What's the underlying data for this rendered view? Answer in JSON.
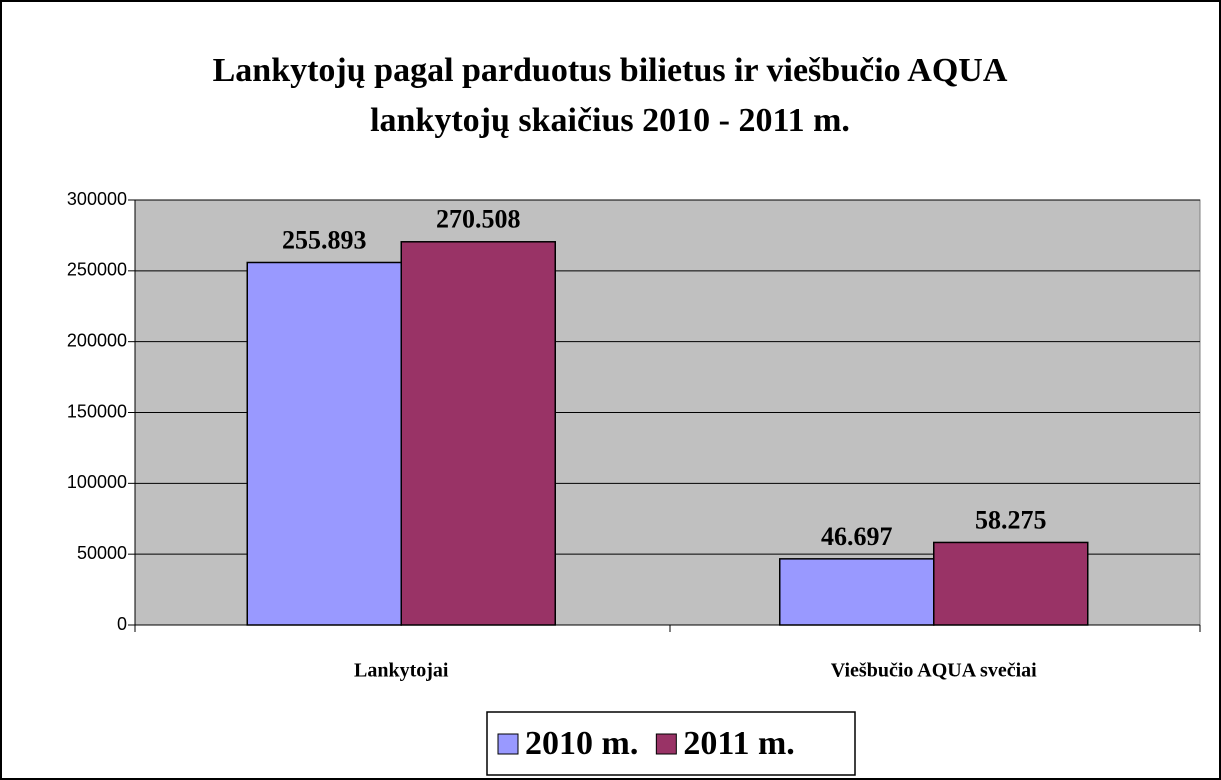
{
  "chart_data": {
    "type": "bar",
    "title": "Lankytojų pagal parduotus bilietus ir viešbučio AQUA lankytojų skaičius 2010 - 2011 m.",
    "categories": [
      "Lankytojai",
      "Viešbučio AQUA svečiai"
    ],
    "series": [
      {
        "name": "2010 m.",
        "color": "#9999ff",
        "values": [
          255893,
          46697
        ],
        "value_labels": [
          "255.893",
          "46.697"
        ]
      },
      {
        "name": "2011 m.",
        "color": "#993366",
        "values": [
          270508,
          58275
        ],
        "value_labels": [
          "270.508",
          "58.275"
        ]
      }
    ],
    "ylim": [
      0,
      300000
    ],
    "yticks": [
      0,
      50000,
      100000,
      150000,
      200000,
      250000,
      300000
    ],
    "grid": true,
    "legend": "bottom"
  }
}
